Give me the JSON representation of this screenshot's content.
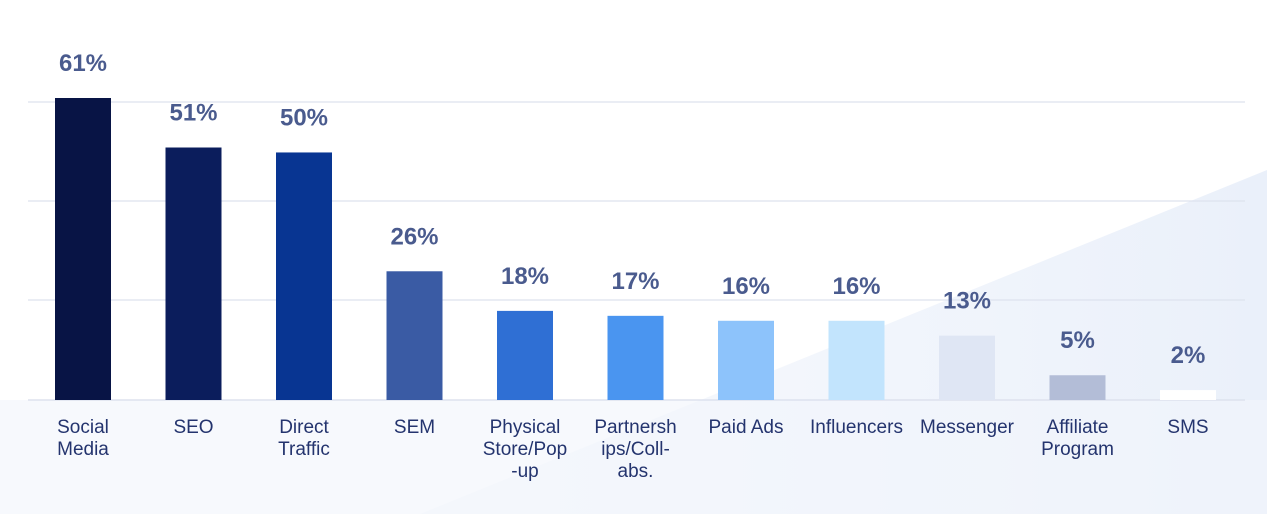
{
  "chart_data": {
    "type": "bar",
    "categories": [
      [
        "Social",
        "Media"
      ],
      [
        "SEO"
      ],
      [
        "Direct",
        "Traffic"
      ],
      [
        "SEM"
      ],
      [
        "Physical",
        "Store/Pop",
        "-up"
      ],
      [
        "Partnersh",
        "ips/Coll-",
        "abs."
      ],
      [
        "Paid Ads"
      ],
      [
        "Influencers"
      ],
      [
        "Messenger"
      ],
      [
        "Affiliate",
        "Program"
      ],
      [
        "SMS"
      ]
    ],
    "values": [
      61,
      51,
      50,
      26,
      18,
      17,
      16,
      16,
      13,
      5,
      2
    ],
    "value_labels": [
      "61%",
      "51%",
      "50%",
      "26%",
      "18%",
      "17%",
      "16%",
      "16%",
      "13%",
      "5%",
      "2%"
    ],
    "bar_colors": [
      "#081445",
      "#0b1d5c",
      "#083592",
      "#3a5ba4",
      "#2f6fd4",
      "#4a95f0",
      "#8dc3fb",
      "#c2e4fd",
      "#dfe6f4",
      "#b3bdd7",
      "#ffffff"
    ],
    "ylim": [
      0,
      61
    ],
    "grid": true,
    "grid_color": "#dde2ee",
    "value_label_color": "#4a5b8e",
    "category_label_color": "#24346e",
    "background_gradient_color": "#eef3fb"
  }
}
